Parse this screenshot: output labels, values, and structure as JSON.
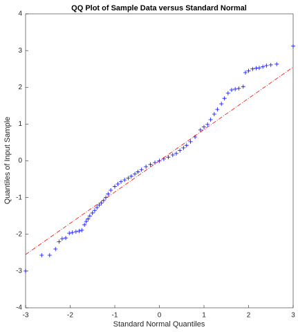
{
  "chart_data": {
    "type": "scatter",
    "title": "QQ Plot of Sample Data versus Standard Normal",
    "xlabel": "Standard Normal Quantiles",
    "ylabel": "Quantiles of Input Sample",
    "xlim": [
      -3,
      3
    ],
    "ylim": [
      -4,
      4
    ],
    "xticks": [
      -3,
      -2,
      -1,
      0,
      1,
      2,
      3
    ],
    "yticks": [
      -4,
      -3,
      -2,
      -1,
      0,
      1,
      2,
      3,
      4
    ],
    "grid": false,
    "series": [
      {
        "type": "scatter",
        "marker": "+",
        "color": "#0000ff",
        "x": [
          -3,
          -2.64,
          -2.46,
          -2.33,
          -2.25,
          -2.18,
          -2.1,
          -2.02,
          -1.95,
          -1.87,
          -1.8,
          -1.74,
          -1.68,
          -1.64,
          -1.6,
          -1.56,
          -1.5,
          -1.45,
          -1.4,
          -1.35,
          -1.3,
          -1.25,
          -1.2,
          -1.15,
          -1.09,
          -1.0,
          -0.93,
          -0.86,
          -0.78,
          -0.7,
          -0.63,
          -0.55,
          -0.48,
          -0.4,
          -0.3,
          -0.2,
          -0.1,
          0,
          0.1,
          0.2,
          0.3,
          0.38,
          0.46,
          0.54,
          0.61,
          0.7,
          0.8,
          0.92,
          1.0,
          1.08,
          1.15,
          1.23,
          1.3,
          1.39,
          1.46,
          1.54,
          1.62,
          1.7,
          1.78,
          1.88,
          1.93,
          2.0,
          2.09,
          2.17,
          2.24,
          2.32,
          2.4,
          2.5,
          2.63,
          3.0
        ],
        "values": [
          -3.0,
          -2.57,
          -2.57,
          -2.4,
          -2.2,
          -2.12,
          -2.1,
          -1.97,
          -1.95,
          -1.93,
          -1.91,
          -1.89,
          -1.74,
          -1.65,
          -1.58,
          -1.5,
          -1.42,
          -1.35,
          -1.27,
          -1.2,
          -1.15,
          -1.08,
          -1.0,
          -0.9,
          -0.8,
          -0.7,
          -0.63,
          -0.57,
          -0.52,
          -0.47,
          -0.42,
          -0.36,
          -0.3,
          -0.24,
          -0.16,
          -0.1,
          -0.05,
          0,
          0.05,
          0.1,
          0.16,
          0.2,
          0.28,
          0.35,
          0.42,
          0.52,
          0.65,
          0.84,
          0.92,
          0.99,
          1.12,
          1.27,
          1.4,
          1.55,
          1.7,
          1.84,
          1.93,
          1.95,
          1.97,
          2.02,
          2.4,
          2.45,
          2.5,
          2.52,
          2.53,
          2.56,
          2.59,
          2.61,
          2.63,
          3.12
        ]
      },
      {
        "type": "line",
        "dash": "dashdot",
        "color": "#ff0000",
        "x": [
          -3,
          3
        ],
        "values": [
          -2.55,
          2.55
        ]
      }
    ]
  }
}
